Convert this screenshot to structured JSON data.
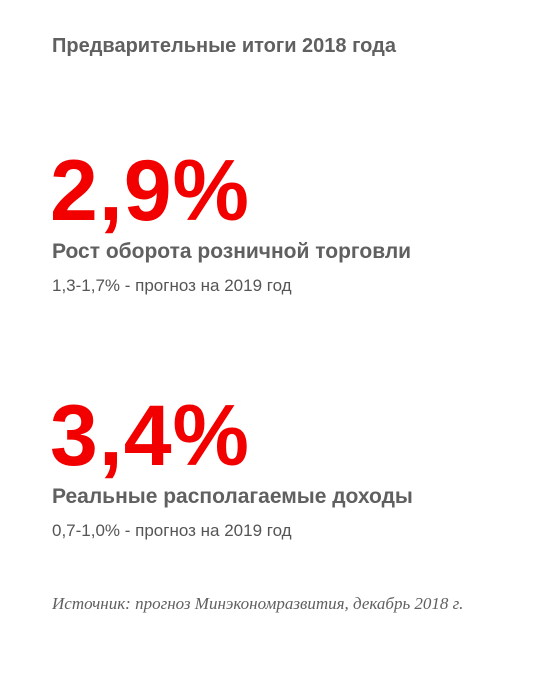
{
  "header": {
    "title": "Предварительные итоги 2018 года"
  },
  "metrics": [
    {
      "value": "2,9%",
      "label": "Рост оборота розничной торговли",
      "forecast": "1,3-1,7% - прогноз на 2019 год"
    },
    {
      "value": "3,4%",
      "label": "Реальные располагаемые доходы",
      "forecast": "0,7-1,0% - прогноз на 2019 год"
    }
  ],
  "footer": {
    "source": "Источник: прогноз Минэкономразвития, декабрь 2018 г."
  },
  "colors": {
    "accent": "#f20000",
    "text": "#606060"
  }
}
